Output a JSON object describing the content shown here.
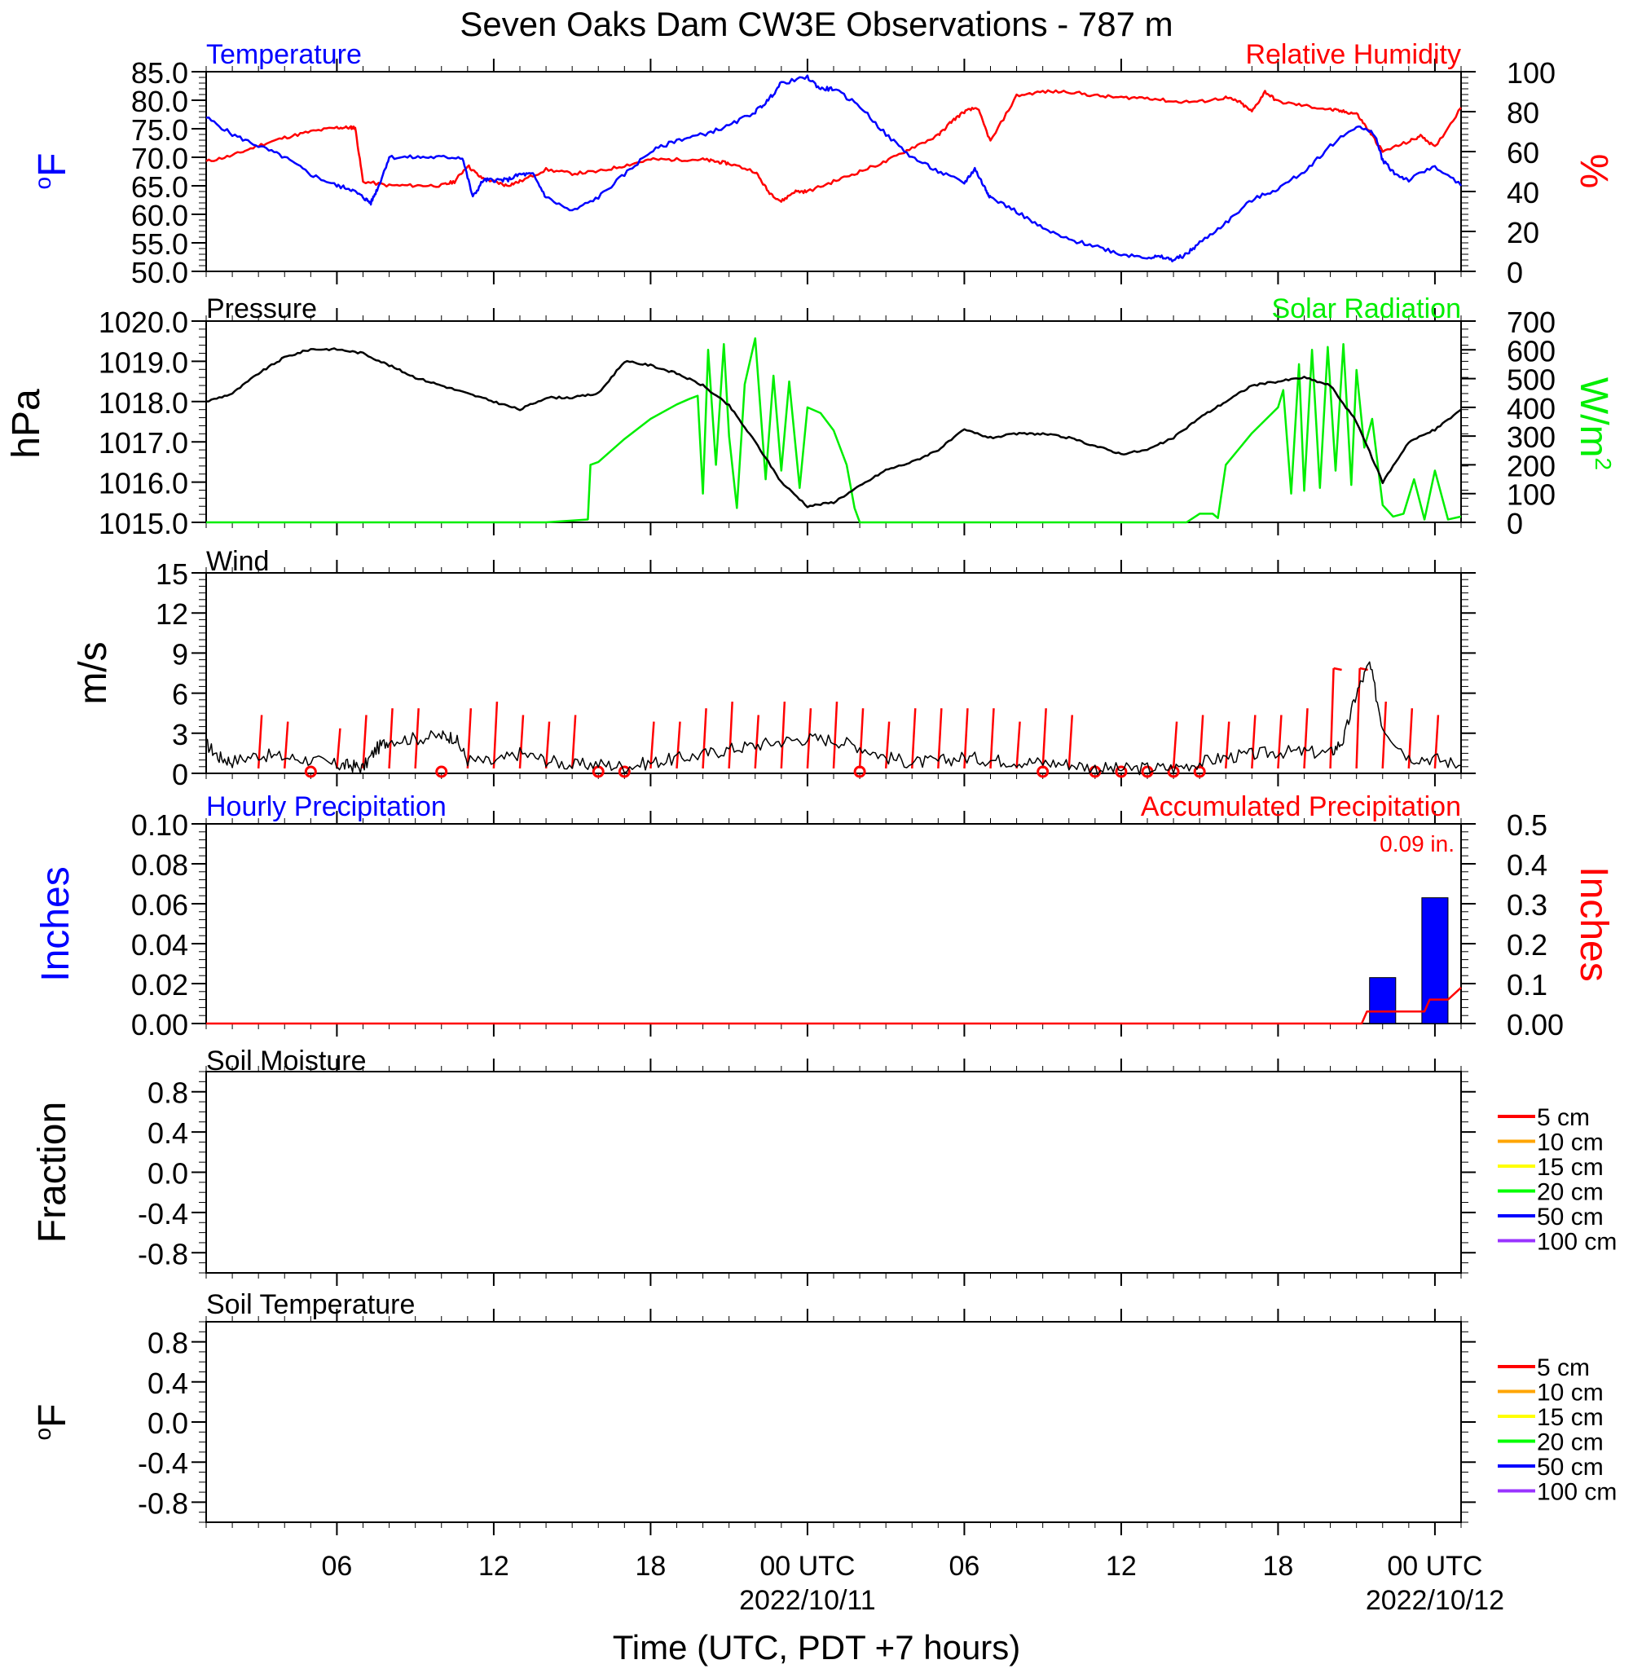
{
  "title": "Seven Oaks Dam CW3E Observations - 787 m",
  "x_axis": {
    "label": "Time (UTC, PDT +7 hours)",
    "start": "2022-10-10T01:00",
    "end": "2022-10-12T01:00",
    "ticks": [
      {
        "time": "2022-10-10T06:00",
        "label": "06",
        "date": ""
      },
      {
        "time": "2022-10-10T12:00",
        "label": "12",
        "date": ""
      },
      {
        "time": "2022-10-10T18:00",
        "label": "18",
        "date": ""
      },
      {
        "time": "2022-10-11T00:00",
        "label": "00 UTC",
        "date": "2022/10/11"
      },
      {
        "time": "2022-10-11T06:00",
        "label": "06",
        "date": ""
      },
      {
        "time": "2022-10-11T12:00",
        "label": "12",
        "date": ""
      },
      {
        "time": "2022-10-11T18:00",
        "label": "18",
        "date": ""
      },
      {
        "time": "2022-10-12T00:00",
        "label": "00 UTC",
        "date": "2022/10/12"
      }
    ]
  },
  "colors": {
    "temperature": "#0000ff",
    "humidity": "#ff0000",
    "pressure": "#000000",
    "solar": "#00ee00",
    "wind": "#000000",
    "barb": "#ff0000",
    "hourly_precip": "#0000ff",
    "accum_precip": "#ff0000",
    "soil_depths": [
      "#ff0000",
      "#ffa500",
      "#ffff00",
      "#00ff00",
      "#0000ff",
      "#9933ff"
    ]
  },
  "chart_data": [
    {
      "type": "line",
      "panel": "temperature-humidity",
      "left_title": "Temperature",
      "right_title": "Relative Humidity",
      "left_unit": "oF",
      "right_unit": "%",
      "left_ylim": [
        50,
        85
      ],
      "right_ylim": [
        0,
        100
      ],
      "left_ticks": [
        "85.0",
        "80.0",
        "75.0",
        "70.0",
        "65.0",
        "60.0",
        "55.0",
        "50.0"
      ],
      "right_ticks": [
        "100",
        "80",
        "60",
        "40",
        "20",
        "0"
      ],
      "series": [
        {
          "axis": "left",
          "x_hours": [
            0,
            1,
            2,
            3,
            4,
            5,
            5.5,
            6,
            6.3,
            6.6,
            7,
            8,
            9,
            9.8,
            10.2,
            10.6,
            11,
            11.5,
            12,
            12.5,
            13,
            14,
            15,
            16,
            17,
            18,
            19,
            20,
            21,
            21.5,
            22,
            23,
            23.5,
            24,
            25,
            26,
            27,
            28,
            29,
            29.4,
            29.8,
            30,
            31,
            32,
            33,
            34,
            35,
            36,
            36.5,
            37,
            37.5,
            38,
            39,
            40,
            41,
            42,
            43,
            44,
            44.7,
            45,
            45.5,
            46,
            47,
            48
          ],
          "values": [
            77,
            74,
            72,
            70,
            67,
            65,
            64.5,
            63,
            62,
            65,
            70,
            70,
            70,
            70,
            63,
            66,
            66,
            66,
            67,
            67,
            63,
            60.5,
            63,
            67,
            71,
            73,
            74,
            75.5,
            78,
            80,
            83,
            84,
            82,
            82,
            79,
            74,
            70,
            67.5,
            65.5,
            68,
            64.5,
            63,
            60.5,
            57.5,
            55.5,
            54.5,
            53,
            52.5,
            52.5,
            52,
            53,
            55,
            58.5,
            62.5,
            64.5,
            67.5,
            72,
            75.5,
            74,
            69.5,
            67,
            66,
            68.5,
            65
          ]
        },
        {
          "axis": "right",
          "x_hours": [
            0,
            1,
            2,
            3,
            4,
            5,
            5.5,
            5.7,
            6,
            7,
            8,
            9,
            9.5,
            10,
            10.5,
            11,
            11.5,
            12,
            13,
            14,
            15,
            16,
            17,
            18,
            19,
            19.5,
            20,
            21,
            21.5,
            22,
            22.5,
            23,
            24,
            25,
            26,
            27,
            28,
            28.5,
            29,
            29.5,
            30,
            31,
            32,
            33,
            34,
            35,
            36,
            37,
            38,
            39,
            39.5,
            40,
            40.5,
            41,
            42,
            43,
            43.5,
            44,
            44.5,
            45,
            46,
            46.5,
            47,
            48
          ],
          "values": [
            55,
            58,
            63,
            67,
            70,
            72,
            72,
            72,
            45,
            43,
            43,
            43,
            45,
            53,
            47,
            45,
            43,
            45,
            51,
            49,
            50,
            53,
            56,
            56,
            56,
            55,
            54,
            50,
            40,
            35,
            40,
            40,
            45,
            50,
            55,
            62,
            68,
            75,
            80,
            82,
            65,
            88,
            90,
            90,
            88,
            87,
            87,
            85,
            85,
            87,
            85,
            80,
            90,
            85,
            83,
            81,
            80,
            79,
            70,
            60,
            65,
            68,
            62,
            82
          ]
        }
      ]
    },
    {
      "type": "line",
      "panel": "pressure-solar",
      "left_title": "Pressure",
      "right_title": "Solar Radiation",
      "left_unit": "hPa",
      "right_unit": "W/m2",
      "left_ylim": [
        1015,
        1020
      ],
      "right_ylim": [
        0,
        700
      ],
      "left_ticks": [
        "1020.0",
        "1019.0",
        "1018.0",
        "1017.0",
        "1016.0",
        "1015.0"
      ],
      "right_ticks": [
        "700",
        "600",
        "500",
        "400",
        "300",
        "200",
        "100",
        "0"
      ],
      "series": [
        {
          "axis": "left",
          "x_hours": [
            0,
            1,
            2,
            3,
            4,
            5,
            6,
            7,
            8,
            9,
            10,
            11,
            12,
            13,
            14,
            15,
            16,
            17,
            18,
            19,
            20,
            21,
            22,
            23,
            24,
            25,
            26,
            27,
            28,
            29,
            30,
            31,
            32,
            33,
            34,
            35,
            36,
            37,
            38,
            39,
            40,
            41,
            42,
            43,
            44,
            45,
            46,
            47,
            48
          ],
          "values": [
            1018.0,
            1018.2,
            1018.7,
            1019.1,
            1019.3,
            1019.3,
            1019.2,
            1018.9,
            1018.6,
            1018.4,
            1018.2,
            1018.0,
            1017.8,
            1018.1,
            1018.1,
            1018.2,
            1019.0,
            1018.9,
            1018.7,
            1018.4,
            1017.9,
            1017.0,
            1016.0,
            1015.4,
            1015.5,
            1015.9,
            1016.3,
            1016.5,
            1016.8,
            1017.3,
            1017.1,
            1017.2,
            1017.2,
            1017.1,
            1016.9,
            1016.7,
            1016.8,
            1017.1,
            1017.6,
            1018.0,
            1018.4,
            1018.5,
            1018.6,
            1018.4,
            1017.5,
            1016.0,
            1017.0,
            1017.3,
            1017.8
          ]
        },
        {
          "axis": "right",
          "x_hours": [
            0,
            13,
            14.6,
            14.7,
            15,
            16,
            17,
            18,
            18.5,
            18.8,
            19,
            19.2,
            19.5,
            19.8,
            20,
            20.3,
            20.6,
            21,
            21.4,
            21.7,
            22,
            22.3,
            22.7,
            23,
            23.5,
            24,
            24.5,
            24.8,
            25,
            37.5,
            38,
            38.5,
            38.7,
            39,
            40,
            41,
            41.2,
            41.5,
            41.8,
            42,
            42.3,
            42.6,
            42.9,
            43.2,
            43.5,
            43.8,
            44,
            44.3,
            44.6,
            45,
            45.4,
            45.8,
            46.2,
            46.6,
            47,
            47.5,
            48
          ],
          "values": [
            0,
            0,
            10,
            200,
            210,
            290,
            360,
            410,
            430,
            440,
            100,
            600,
            200,
            620,
            300,
            50,
            480,
            640,
            150,
            510,
            180,
            490,
            120,
            400,
            380,
            320,
            200,
            50,
            0,
            0,
            30,
            30,
            15,
            200,
            310,
            400,
            460,
            100,
            550,
            110,
            600,
            120,
            610,
            180,
            620,
            130,
            530,
            260,
            360,
            60,
            20,
            30,
            150,
            10,
            180,
            10,
            20
          ]
        }
      ]
    },
    {
      "type": "line",
      "panel": "wind",
      "title": "Wind",
      "y_unit": "m/s",
      "ylim": [
        0,
        15
      ],
      "y_ticks": [
        "15",
        "12",
        "9",
        "6",
        "3",
        "0"
      ],
      "series": [
        {
          "x_hours": [
            0,
            0.5,
            1,
            2,
            3,
            4,
            5,
            5.5,
            6,
            6.5,
            7,
            8,
            9,
            9.5,
            10,
            11,
            12,
            13,
            14,
            15,
            16,
            17,
            18,
            19,
            20,
            21,
            22,
            23,
            24,
            25,
            26,
            27,
            28,
            29,
            30,
            31,
            32,
            33,
            34,
            35,
            36,
            37,
            38,
            39,
            40,
            41,
            42,
            43,
            43.5,
            44,
            44.5,
            45,
            46,
            47,
            48
          ],
          "values": [
            2.2,
            1.2,
            0.9,
            1.4,
            1.2,
            1.0,
            0.6,
            0.6,
            0.4,
            1.8,
            2.5,
            2.6,
            2.8,
            2.7,
            1.0,
            0.8,
            1.5,
            1.0,
            0.6,
            0.7,
            0.5,
            0.8,
            1.1,
            1.4,
            1.8,
            2.1,
            2.4,
            2.6,
            2.5,
            2.0,
            1.2,
            0.8,
            0.9,
            1.2,
            1.0,
            0.9,
            0.8,
            0.7,
            0.4,
            0.3,
            0.4,
            0.4,
            0.8,
            1.2,
            1.4,
            1.6,
            1.6,
            1.5,
            2.5,
            6.0,
            8.2,
            3.5,
            1.2,
            1.1,
            0.6
          ]
        }
      ],
      "barb_hours": [
        2,
        3,
        5,
        6,
        7,
        8,
        10,
        11,
        12,
        13,
        14,
        17,
        18,
        19,
        20,
        21,
        22,
        23,
        24,
        25,
        26,
        27,
        28,
        29,
        30,
        31,
        32,
        33,
        37,
        38,
        39,
        40,
        41,
        42,
        43,
        44,
        45,
        46,
        47
      ],
      "barb_speeds": [
        4,
        3.5,
        3,
        4,
        4.5,
        4.5,
        4.5,
        5,
        4,
        3.5,
        4,
        3.5,
        3.5,
        4.5,
        5,
        4,
        5,
        4.5,
        5,
        4.5,
        3.5,
        4.5,
        4.5,
        4.5,
        4.5,
        3.5,
        4.5,
        4,
        3.5,
        4,
        3.5,
        4,
        4,
        4.5,
        7.5,
        7.5,
        5,
        4.5,
        4
      ],
      "calm_hours": [
        4,
        9,
        15,
        16,
        25,
        32,
        34,
        35,
        36,
        37,
        38
      ]
    },
    {
      "type": "bar",
      "panel": "precipitation",
      "left_title": "Hourly Precipitation",
      "right_title": "Accumulated Precipitation",
      "annotation": "0.09 in.",
      "left_unit": "Inches",
      "right_unit": "Inches",
      "left_ylim": [
        0,
        0.1
      ],
      "right_ylim": [
        0,
        0.5
      ],
      "left_ticks": [
        "0.10",
        "0.08",
        "0.06",
        "0.04",
        "0.02",
        "0.00"
      ],
      "right_ticks": [
        "0.5",
        "0.4",
        "0.3",
        "0.2",
        "0.1",
        "0.00"
      ],
      "hourly": [
        {
          "x_hours": 45,
          "value": 0.023
        },
        {
          "x_hours": 47,
          "value": 0.063
        }
      ],
      "accumulated": {
        "x_hours": [
          0,
          44.2,
          44.4,
          46.6,
          46.8,
          47.5,
          48
        ],
        "values": [
          0,
          0,
          0.03,
          0.03,
          0.06,
          0.06,
          0.09
        ]
      }
    },
    {
      "type": "line",
      "panel": "soil-moisture",
      "title": "Soil Moisture",
      "y_unit": "Fraction",
      "ylim": [
        -1,
        1
      ],
      "y_ticks": [
        "0.8",
        "0.4",
        "0.0",
        "-0.4",
        "-0.8"
      ],
      "legend": [
        "5 cm",
        "10 cm",
        "15 cm",
        "20 cm",
        "50 cm",
        "100 cm"
      ],
      "series": []
    },
    {
      "type": "line",
      "panel": "soil-temperature",
      "title": "Soil Temperature",
      "y_unit": "oF",
      "ylim": [
        -1,
        1
      ],
      "y_ticks": [
        "0.8",
        "0.4",
        "0.0",
        "-0.4",
        "-0.8"
      ],
      "legend": [
        "5 cm",
        "10 cm",
        "15 cm",
        "20 cm",
        "50 cm",
        "100 cm"
      ],
      "series": []
    }
  ]
}
